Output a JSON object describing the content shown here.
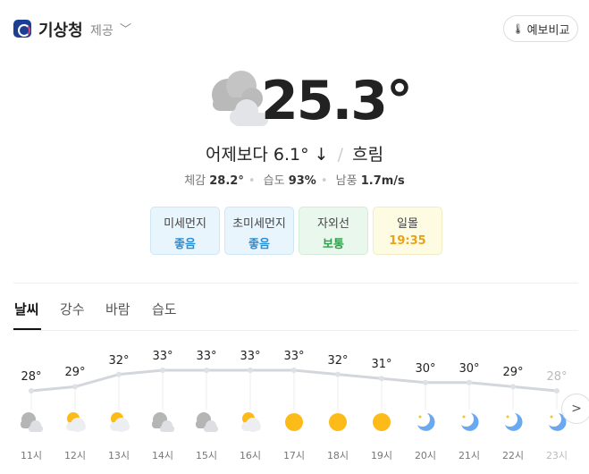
{
  "header": {
    "provider": "기상청",
    "provided_label": "제공",
    "compare_button": "예보비교"
  },
  "current": {
    "temperature": "25.3°",
    "condition": "흐림",
    "comparison_prefix": "어제보다",
    "comparison_value": "6.1°",
    "comparison_arrow": "↓",
    "details": [
      {
        "label": "체감",
        "value": "28.2°"
      },
      {
        "label": "습도",
        "value": "93%"
      },
      {
        "label": "남풍",
        "value": "1.7m/s"
      }
    ]
  },
  "cards": [
    {
      "label": "미세먼지",
      "value": "좋음",
      "color": "#2b8fd6",
      "bg": "#e9f5fd",
      "border": "#cfe6f7"
    },
    {
      "label": "초미세먼지",
      "value": "좋음",
      "color": "#2b8fd6",
      "bg": "#e9f5fd",
      "border": "#cfe6f7"
    },
    {
      "label": "자외선",
      "value": "보통",
      "color": "#2ea24a",
      "bg": "#eaf7ec",
      "border": "#d3ecd7"
    },
    {
      "label": "일몰",
      "value": "19:35",
      "color": "#e8a317",
      "bg": "#fefbe3",
      "border": "#f2ecc4"
    }
  ],
  "tabs": [
    "날씨",
    "강수",
    "바람",
    "습도"
  ],
  "hourly": [
    {
      "hour": "11시",
      "temp": 28,
      "label": "28°",
      "icon": "cloudy"
    },
    {
      "hour": "12시",
      "temp": 29,
      "label": "29°",
      "icon": "partly-cloudy"
    },
    {
      "hour": "13시",
      "temp": 32,
      "label": "32°",
      "icon": "partly-cloudy"
    },
    {
      "hour": "14시",
      "temp": 33,
      "label": "33°",
      "icon": "cloudy"
    },
    {
      "hour": "15시",
      "temp": 33,
      "label": "33°",
      "icon": "cloudy"
    },
    {
      "hour": "16시",
      "temp": 33,
      "label": "33°",
      "icon": "partly-cloudy"
    },
    {
      "hour": "17시",
      "temp": 33,
      "label": "33°",
      "icon": "sunny"
    },
    {
      "hour": "18시",
      "temp": 32,
      "label": "32°",
      "icon": "sunny"
    },
    {
      "hour": "19시",
      "temp": 31,
      "label": "31°",
      "icon": "sunny"
    },
    {
      "hour": "20시",
      "temp": 30,
      "label": "30°",
      "icon": "clear-night"
    },
    {
      "hour": "21시",
      "temp": 30,
      "label": "30°",
      "icon": "clear-night"
    },
    {
      "hour": "22시",
      "temp": 29,
      "label": "29°",
      "icon": "clear-night"
    },
    {
      "hour": "23시",
      "temp": 28,
      "label": "28°",
      "icon": "clear-night"
    }
  ]
}
